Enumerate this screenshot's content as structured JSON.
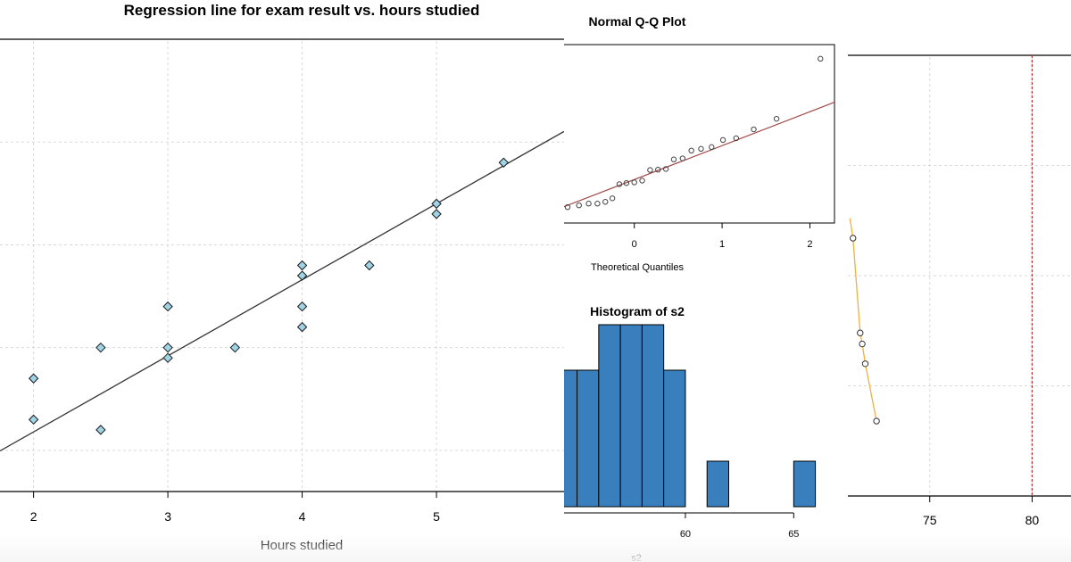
{
  "chart_data": [
    {
      "id": "regression",
      "type": "scatter",
      "title": "Regression line for exam result vs. hours studied",
      "xlabel": "Hours studied",
      "ylabel": "",
      "xlim": [
        1.75,
        5.95
      ],
      "ylim": [
        58,
        80
      ],
      "x_ticks": [
        "2",
        "3",
        "4",
        "5"
      ],
      "grid": true,
      "marker": "diamond",
      "marker_color": "#9fd3e6",
      "line_color": "#333333",
      "points": [
        {
          "x": 2,
          "y": 63.5
        },
        {
          "x": 2,
          "y": 61.5
        },
        {
          "x": 2.5,
          "y": 65
        },
        {
          "x": 2.5,
          "y": 61
        },
        {
          "x": 3,
          "y": 67
        },
        {
          "x": 3,
          "y": 65
        },
        {
          "x": 3,
          "y": 64.5
        },
        {
          "x": 3.5,
          "y": 65
        },
        {
          "x": 4,
          "y": 69
        },
        {
          "x": 4,
          "y": 68.5
        },
        {
          "x": 4,
          "y": 67
        },
        {
          "x": 4,
          "y": 66
        },
        {
          "x": 4.5,
          "y": 69
        },
        {
          "x": 5,
          "y": 72
        },
        {
          "x": 5,
          "y": 71.5
        },
        {
          "x": 5.5,
          "y": 74
        }
      ],
      "regression_line": {
        "intercept": 53.5,
        "slope": 3.7
      }
    },
    {
      "id": "qq",
      "type": "scatter",
      "title": "Normal Q-Q Plot",
      "xlabel": "Theoretical Quantiles",
      "ylabel": "",
      "xlim": [
        -0.8,
        2.28
      ],
      "ylim": [
        -1.85,
        3.2
      ],
      "x_ticks": [
        "0",
        "1",
        "2"
      ],
      "marker_color": "#444444",
      "line_color": "#a04848",
      "points": [
        {
          "x": -0.76,
          "y": -1.4
        },
        {
          "x": -0.63,
          "y": -1.35
        },
        {
          "x": -0.52,
          "y": -1.3
        },
        {
          "x": -0.42,
          "y": -1.3
        },
        {
          "x": -0.33,
          "y": -1.25
        },
        {
          "x": -0.25,
          "y": -1.15
        },
        {
          "x": -0.17,
          "y": -0.75
        },
        {
          "x": -0.09,
          "y": -0.72
        },
        {
          "x": 0,
          "y": -0.7
        },
        {
          "x": 0.09,
          "y": -0.65
        },
        {
          "x": 0.18,
          "y": -0.35
        },
        {
          "x": 0.27,
          "y": -0.34
        },
        {
          "x": 0.36,
          "y": -0.32
        },
        {
          "x": 0.45,
          "y": -0.05
        },
        {
          "x": 0.55,
          "y": -0.02
        },
        {
          "x": 0.65,
          "y": 0.2
        },
        {
          "x": 0.76,
          "y": 0.25
        },
        {
          "x": 0.88,
          "y": 0.3
        },
        {
          "x": 1.01,
          "y": 0.5
        },
        {
          "x": 1.16,
          "y": 0.55
        },
        {
          "x": 1.36,
          "y": 0.8
        },
        {
          "x": 1.62,
          "y": 1.1
        },
        {
          "x": 2.12,
          "y": 2.8
        }
      ],
      "reference_line": {
        "intercept": -0.62,
        "slope": 0.96
      }
    },
    {
      "id": "histogram",
      "type": "bar",
      "title": "Histogram of s2",
      "xlabel": "s2",
      "ylabel": "",
      "xlim": [
        54.4,
        67.5
      ],
      "ylim": [
        0,
        5
      ],
      "x_ticks": [
        "60",
        "65"
      ],
      "bar_color": "#3a7fbd",
      "bins": [
        {
          "from": 54,
          "to": 55,
          "count": 3
        },
        {
          "from": 55,
          "to": 56,
          "count": 3
        },
        {
          "from": 56,
          "to": 57,
          "count": 4
        },
        {
          "from": 57,
          "to": 58,
          "count": 4
        },
        {
          "from": 58,
          "to": 59,
          "count": 4
        },
        {
          "from": 59,
          "to": 60,
          "count": 3
        },
        {
          "from": 61,
          "to": 62,
          "count": 1
        },
        {
          "from": 65,
          "to": 66,
          "count": 1
        }
      ]
    },
    {
      "id": "right-panel",
      "type": "scatter",
      "title": "",
      "xlabel": "",
      "ylabel": "",
      "xlim": [
        71,
        81.9
      ],
      "ylim": [
        0,
        1
      ],
      "x_ticks": [
        "75",
        "80"
      ],
      "grid": true,
      "marker_color": "#e8a040",
      "line_color": "#f0b040",
      "vline_color": "#b04040",
      "vline": 80,
      "points": [
        {
          "x": 71.25,
          "y": 0.585
        },
        {
          "x": 71.6,
          "y": 0.37
        },
        {
          "x": 71.7,
          "y": 0.345
        },
        {
          "x": 71.85,
          "y": 0.3
        },
        {
          "x": 72.4,
          "y": 0.17
        }
      ]
    }
  ]
}
